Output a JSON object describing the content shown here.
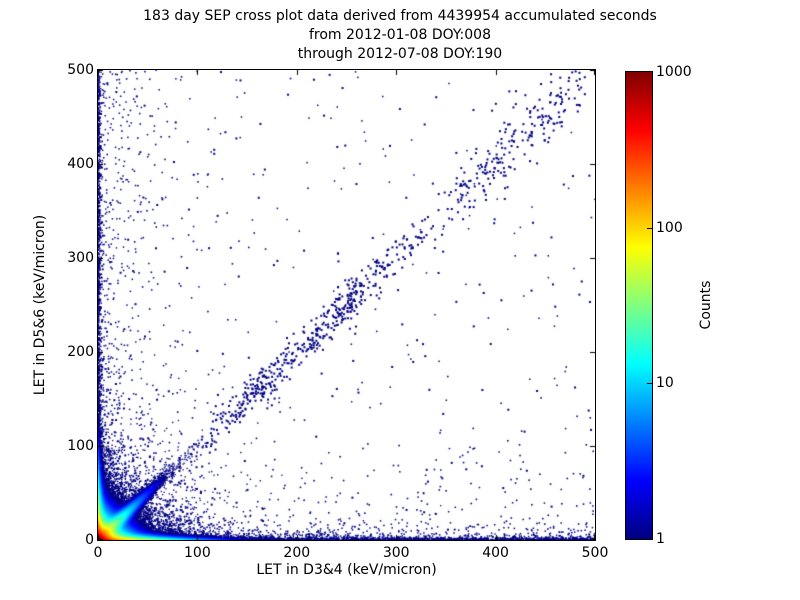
{
  "chart_data": {
    "type": "heatmap",
    "subtype": "2D-histogram cross plot (scatter density, square ~2px bins)",
    "title_lines": [
      "183 day SEP cross plot data derived from 4439954 accumulated seconds",
      "from 2012-01-08 DOY:008",
      "through 2012-07-08 DOY:190"
    ],
    "xlabel": "LET in D3&4 (keV/micron)",
    "ylabel": "LET in D5&6 (keV/micron)",
    "xlim": [
      0,
      500
    ],
    "ylim": [
      0,
      500
    ],
    "xticks": [
      0,
      100,
      200,
      300,
      400,
      500
    ],
    "yticks": [
      0,
      100,
      200,
      300,
      400,
      500
    ],
    "grid": false,
    "tick_style": "inward ticks on all four sides",
    "background": "#ffffff",
    "point_color_min": "#000080",
    "colorbar": {
      "label": "Counts",
      "scale": "log",
      "range": [
        1,
        1000
      ],
      "ticks": [
        1,
        10,
        100,
        1000
      ],
      "colormap": "jet",
      "gradient_stops": [
        {
          "pos": 0.0,
          "color": "#000080"
        },
        {
          "pos": 0.125,
          "color": "#0000ff"
        },
        {
          "pos": 0.375,
          "color": "#00ffff"
        },
        {
          "pos": 0.625,
          "color": "#ffff00"
        },
        {
          "pos": 0.875,
          "color": "#ff0000"
        },
        {
          "pos": 1.0,
          "color": "#800000"
        }
      ]
    },
    "features": [
      {
        "name": "origin-hotspot",
        "desc": "intense peak at origin, ~1000 counts (dark red core within ~8 keV/micron, shells of red, orange, yellow, green, cyan out to ~40)"
      },
      {
        "name": "bottom-hot-tongue",
        "desc": "red/orange along y~0 out to x~25, fading yellow-green-cyan-blue by x~120"
      },
      {
        "name": "left-hot-tongue",
        "desc": "red/orange along x~0 out to y~12, fading through jet colors by y~100"
      },
      {
        "name": "diagonal-streak",
        "desc": "bright green-cyan streak along y=x from origin to ~(70,70) fading to blue"
      },
      {
        "name": "origin-cloud",
        "desc": "dense dark-blue cloud, density ~exp(-(x+y)/20), speckle out to ~100 keV/micron"
      },
      {
        "name": "bottom-band",
        "desc": "dense single-count band hugging y=0 across entire 0-500 x range"
      },
      {
        "name": "left-band",
        "desc": "dense single-count band hugging x=0 across entire 0-500 y range"
      },
      {
        "name": "mid-diagonal-band",
        "desc": "scattered dark-blue band along y~x from ~(90,90) to ~(480,500); denser clusters near (165,165) and (250,250); widens above (380,380)"
      },
      {
        "name": "sparse-background",
        "desc": "isolated single-count dark blue points scattered over whole plane"
      }
    ],
    "render": {
      "seed": 20120108,
      "components": {
        "uniform": {
          "n": 330
        },
        "leftCore": {
          "n": 1000,
          "xScale": 1.2
        },
        "leftFringe": {
          "n": 520,
          "xScale": 18,
          "yBias": 1.6
        },
        "bottomCore": {
          "n": 1500,
          "yScale": 1.2
        },
        "bottomFringe": {
          "n": 900,
          "yScale": 7,
          "xBias": 2.0
        },
        "cloud": {
          "n": 2800,
          "scale": 26
        },
        "cloudWide": {
          "n": 600,
          "scale": 45
        },
        "lowerSparse": {
          "n": 260,
          "yScale": 60
        },
        "leftSparse": {
          "n": 210,
          "xScale": 55
        },
        "band": {
          "n": 300,
          "xMin": 80,
          "xMax": 490,
          "sigma": 13
        },
        "cluster1": {
          "n": 200,
          "mu": 250,
          "spread": 38,
          "sigma": 12
        },
        "cluster2": {
          "n": 130,
          "mu": 165,
          "spread": 25,
          "sigma": 9
        },
        "upperBand": {
          "n": 90,
          "xMin": 360,
          "xMax": 470,
          "sigma": 26
        },
        "field": {
          "coreAmp": 1100,
          "coreScale": 5.5,
          "cloudAmp": 120,
          "cloudScale": 13,
          "bottomAmp": 260,
          "bottomYScale": 2.0,
          "bottomXScale": 30,
          "leftAmp": 170,
          "leftXScale": 2.0,
          "leftYScale": 26,
          "streakAmp": 70,
          "streakSigma": 3.5,
          "streakTScale": 16
        }
      }
    }
  }
}
